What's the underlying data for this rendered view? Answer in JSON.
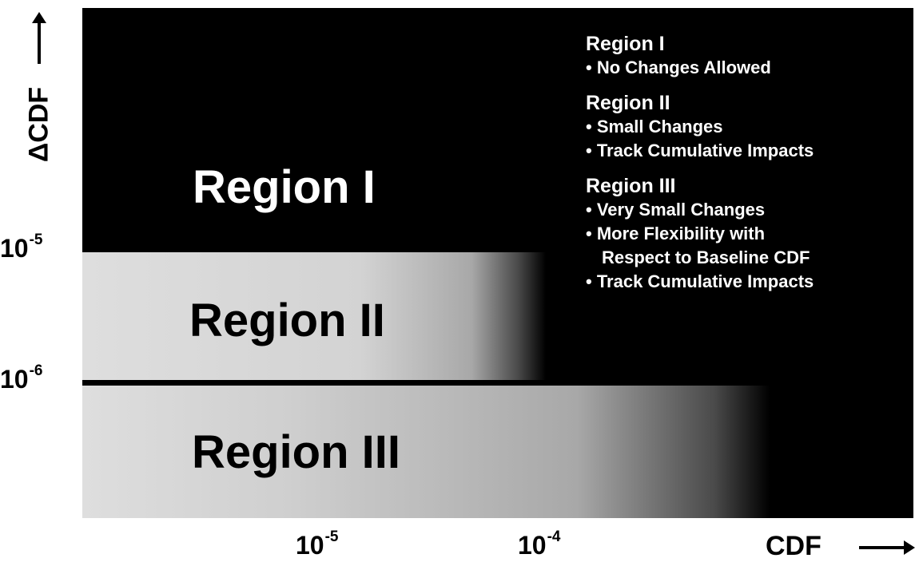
{
  "plot": {
    "regions": [
      {
        "label": "Region I"
      },
      {
        "label": "Region II"
      },
      {
        "label": "Region III"
      }
    ],
    "colors": {
      "background": "#000000",
      "band_light": "#dedede"
    }
  },
  "legend": [
    {
      "title": "Region I",
      "items": [
        "• No Changes Allowed"
      ]
    },
    {
      "title": "Region II",
      "items": [
        "• Small Changes",
        "• Track Cumulative Impacts"
      ]
    },
    {
      "title": "Region III",
      "items": [
        "• Very Small Changes",
        "• More Flexibility with",
        "Respect to Baseline CDF",
        "• Track Cumulative Impacts"
      ]
    }
  ],
  "y_axis": {
    "title": "ΔCDF",
    "ticks": [
      {
        "base": "10",
        "exp": "-5"
      },
      {
        "base": "10",
        "exp": "-6"
      }
    ]
  },
  "x_axis": {
    "title": "CDF",
    "ticks": [
      {
        "base": "10",
        "exp": "-5"
      },
      {
        "base": "10",
        "exp": "-4"
      }
    ]
  }
}
